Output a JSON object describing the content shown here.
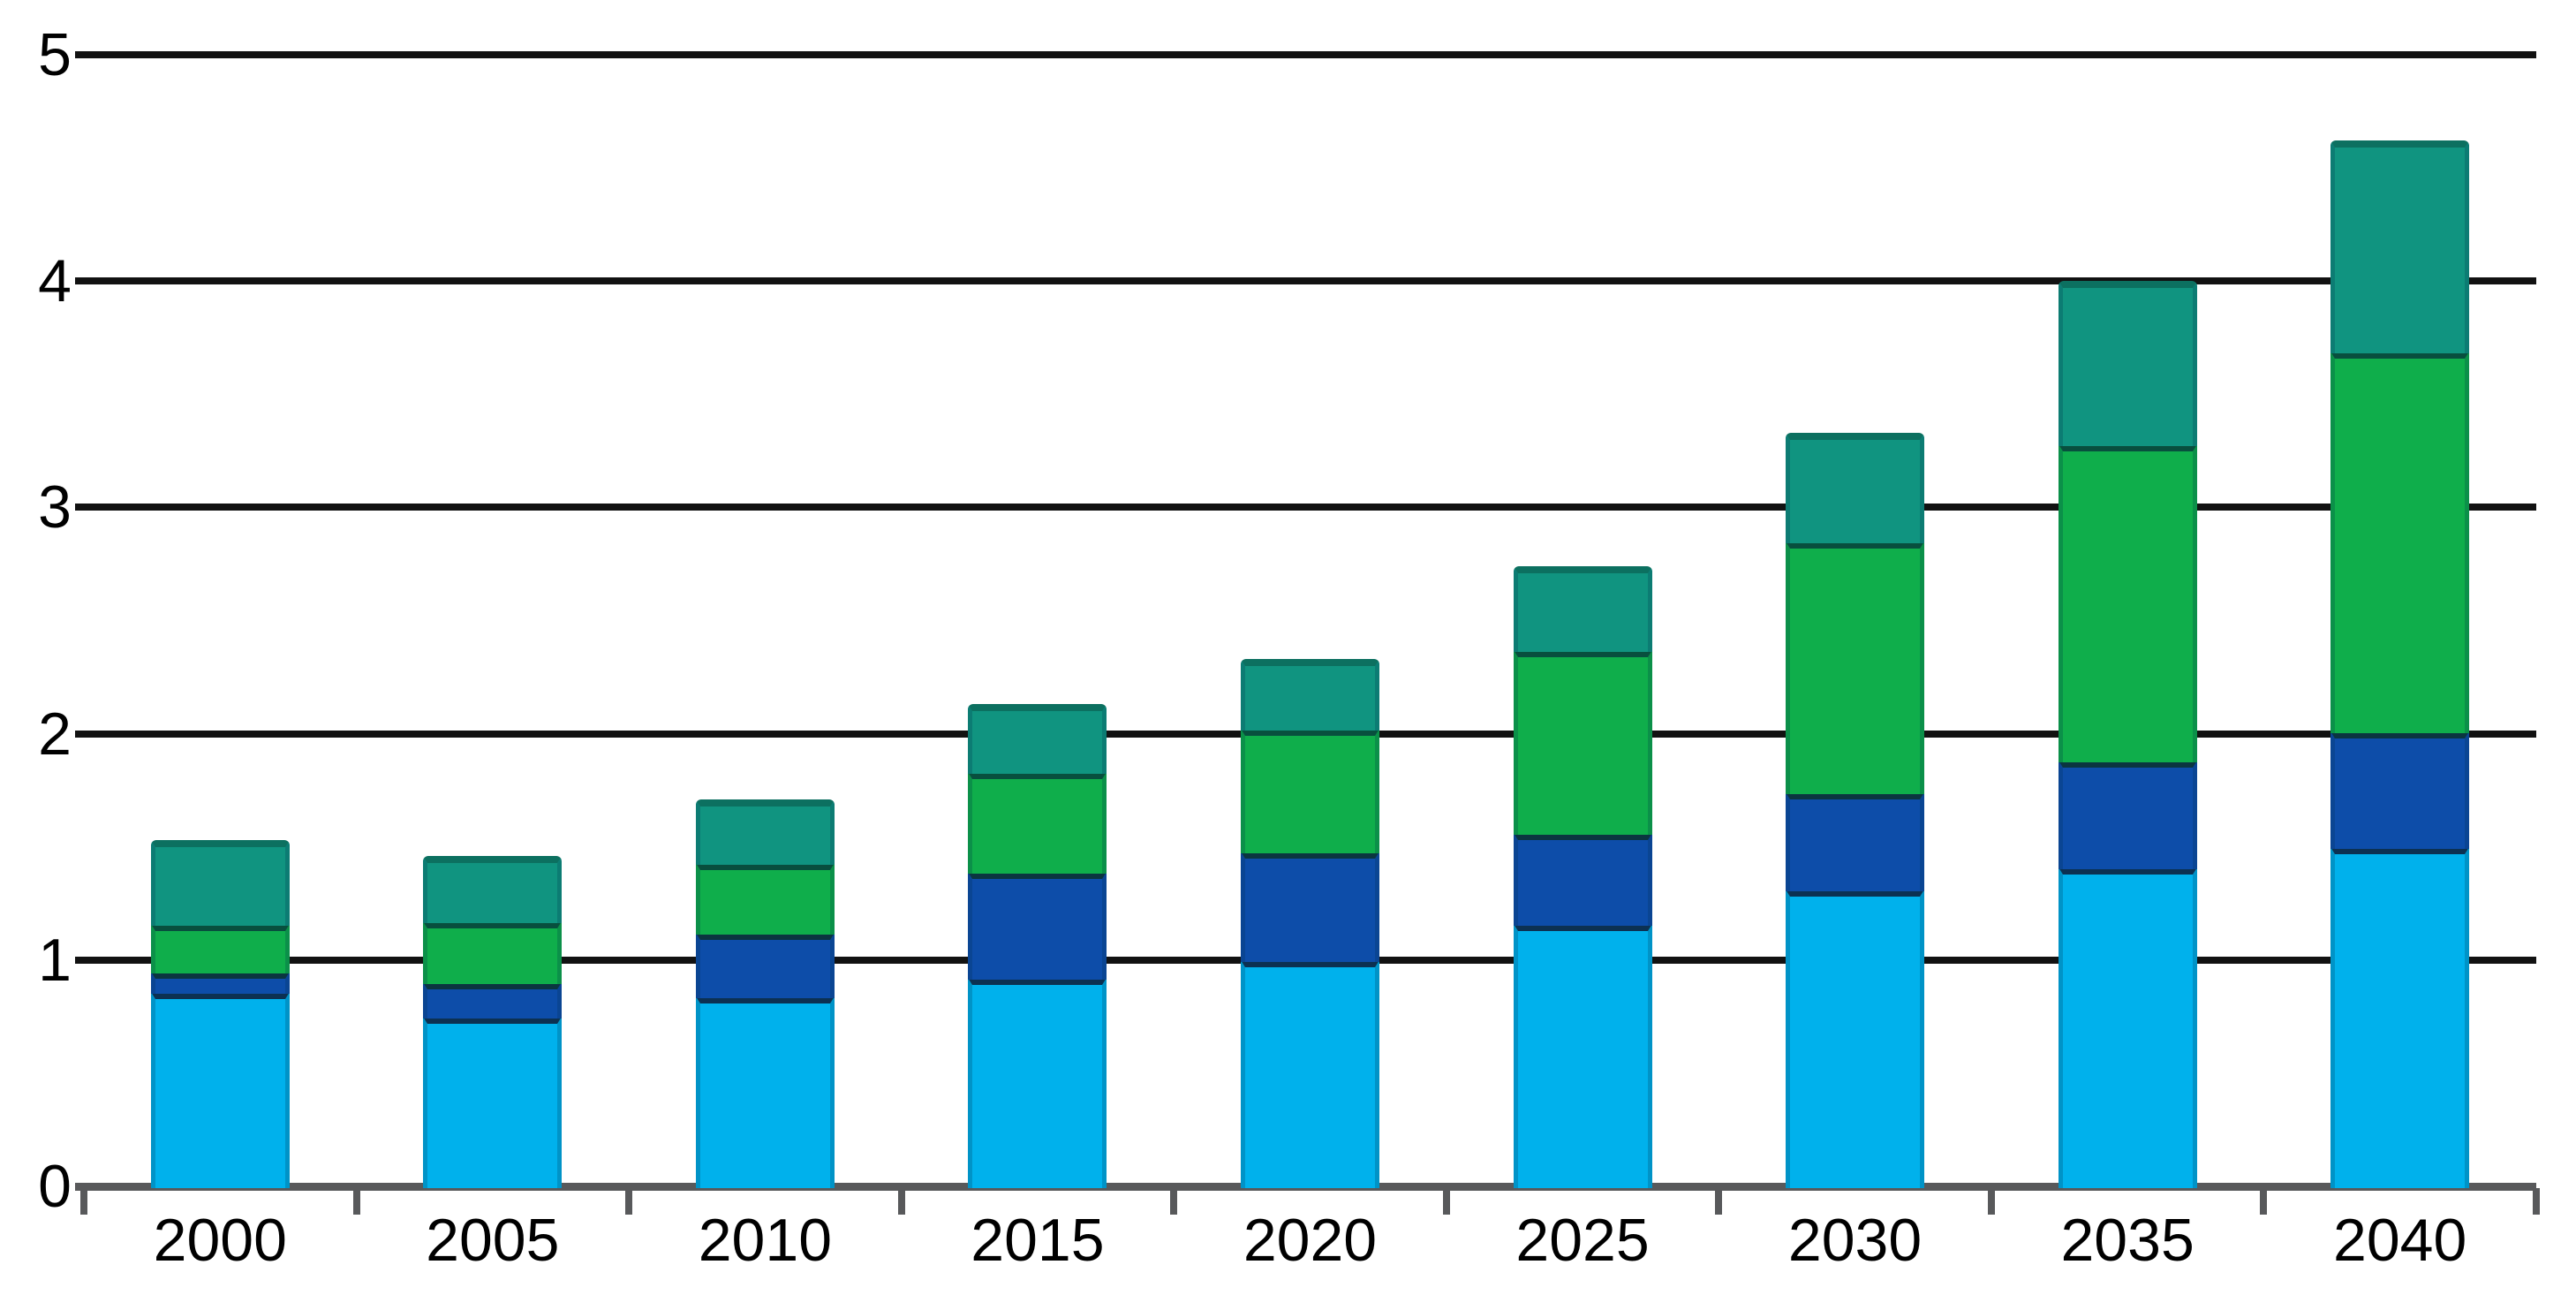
{
  "chart_data": {
    "type": "bar",
    "stacked": true,
    "title": "",
    "xlabel": "",
    "ylabel": "",
    "categories": [
      "2000",
      "2005",
      "2010",
      "2015",
      "2020",
      "2025",
      "2030",
      "2035",
      "2040"
    ],
    "series": [
      {
        "name": "light-blue-bottom-segment",
        "color": "#00b1ec",
        "separator_color": "#0c3152",
        "values": [
          0.86,
          0.75,
          0.84,
          0.92,
          1.0,
          1.16,
          1.31,
          1.41,
          1.5
        ]
      },
      {
        "name": "dark-blue-segment",
        "color": "#0d4da9",
        "separator_color": "#0b3540",
        "values": [
          0.09,
          0.15,
          0.28,
          0.47,
          0.48,
          0.4,
          0.43,
          0.47,
          0.51
        ]
      },
      {
        "name": "green-segment",
        "color": "#0fae4b",
        "separator_color": "#084f3e",
        "values": [
          0.21,
          0.27,
          0.31,
          0.44,
          0.54,
          0.81,
          1.11,
          1.4,
          1.68
        ]
      },
      {
        "name": "teal-top-segment",
        "color": "#109480",
        "separator_color": "#0c7060",
        "values": [
          0.37,
          0.29,
          0.28,
          0.3,
          0.31,
          0.37,
          0.48,
          0.72,
          0.93
        ]
      }
    ],
    "stack_totals": [
      1.53,
      1.46,
      1.71,
      2.13,
      2.33,
      2.74,
      3.33,
      4.0,
      4.62
    ],
    "y_ticks": [
      0,
      1,
      2,
      3,
      4,
      5
    ],
    "y_tick_labels": [
      "0",
      "1",
      "2",
      "3",
      "4",
      "5"
    ],
    "ylim": [
      0,
      5
    ],
    "grid": "horizontal black lines at each integer, bars drawn over gridlines",
    "legend": "none",
    "axis_color": "#58595b",
    "gridline_color": "#121212",
    "label_color": "#000000",
    "background_color": "#ffffff"
  }
}
